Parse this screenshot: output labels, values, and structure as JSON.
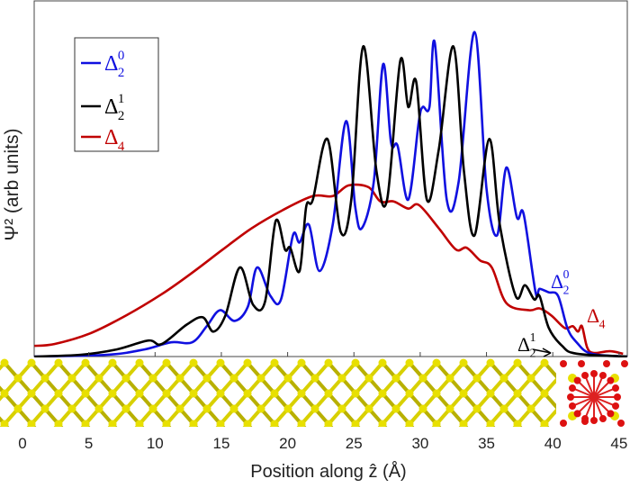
{
  "chart_data": {
    "type": "line",
    "title": "",
    "xlabel": "Position along ẑ (Å)",
    "ylabel": "Ψ² (arb units)",
    "xlim": [
      0,
      45
    ],
    "ylim": [
      0,
      1
    ],
    "xticks": [
      "0",
      "5",
      "10",
      "15",
      "20",
      "25",
      "30",
      "35",
      "40",
      "45"
    ],
    "grid": false,
    "legend_position": "top-left",
    "series": [
      {
        "name": "Δ2^0",
        "label_main": "Δ",
        "label_sub": "2",
        "label_sup": "0",
        "color": "#1010e0",
        "x": [
          0.9,
          6.4,
          9.2,
          11.2,
          12.8,
          13.9,
          14.9,
          16.0,
          17.0,
          17.7,
          18.7,
          19.5,
          20.4,
          20.9,
          21.6,
          22.4,
          23.4,
          24.4,
          25.1,
          25.6,
          26.5,
          27.2,
          27.8,
          28.3,
          29.1,
          29.9,
          30.2,
          30.7,
          31.1,
          32.0,
          32.9,
          34.1,
          35.0,
          35.8,
          36.5,
          37.3,
          37.8,
          38.7,
          39.0,
          39.7,
          40.4,
          41.1,
          41.8,
          42.9,
          45.6
        ],
        "y": [
          0,
          0.005,
          0.02,
          0.04,
          0.04,
          0.085,
          0.13,
          0.1,
          0.14,
          0.25,
          0.17,
          0.16,
          0.34,
          0.32,
          0.37,
          0.24,
          0.37,
          0.66,
          0.42,
          0.36,
          0.49,
          0.82,
          0.6,
          0.59,
          0.44,
          0.66,
          0.7,
          0.7,
          0.88,
          0.44,
          0.49,
          0.91,
          0.47,
          0.34,
          0.53,
          0.39,
          0.4,
          0.18,
          0.19,
          0.18,
          0.17,
          0.08,
          0.04,
          0.008,
          0
        ]
      },
      {
        "name": "Δ2^1",
        "label_main": "Δ",
        "label_sub": "2",
        "label_sup": "1",
        "color": "#000000",
        "x": [
          0.9,
          4.4,
          7.1,
          9.5,
          10.5,
          12.4,
          13.6,
          14.4,
          15.3,
          16.4,
          17.4,
          18.3,
          19.1,
          19.8,
          20.2,
          20.9,
          21.4,
          21.9,
          23.0,
          24.0,
          24.8,
          25.7,
          26.7,
          27.5,
          28.5,
          29.1,
          29.7,
          30.5,
          31.4,
          32.5,
          33.3,
          34.1,
          35.2,
          36.0,
          37.2,
          37.9,
          38.6,
          39.0,
          39.7,
          40.7,
          41.8,
          45.6
        ],
        "y": [
          0,
          0.005,
          0.02,
          0.045,
          0.035,
          0.09,
          0.11,
          0.07,
          0.115,
          0.25,
          0.145,
          0.155,
          0.38,
          0.3,
          0.305,
          0.24,
          0.42,
          0.44,
          0.61,
          0.35,
          0.44,
          0.87,
          0.52,
          0.44,
          0.83,
          0.7,
          0.77,
          0.44,
          0.58,
          0.87,
          0.52,
          0.34,
          0.61,
          0.37,
          0.17,
          0.2,
          0.16,
          0.17,
          0.08,
          0.03,
          0.008,
          0
        ]
      },
      {
        "name": "Δ4",
        "label_main": "Δ",
        "label_sub": "4",
        "label_sup": "",
        "color": "#c00000",
        "x": [
          0.9,
          2.4,
          5.1,
          7.8,
          10.5,
          12.8,
          15.1,
          17.3,
          19.6,
          21.9,
          23.4,
          24.6,
          26.1,
          27.0,
          28.0,
          29.1,
          29.9,
          31.4,
          32.7,
          33.5,
          34.5,
          35.4,
          36.5,
          38.2,
          39.0,
          39.9,
          40.9,
          41.5,
          41.9,
          42.2,
          42.6,
          43.1,
          44.3,
          45.3
        ],
        "y": [
          0.03,
          0.035,
          0.065,
          0.115,
          0.175,
          0.235,
          0.3,
          0.36,
          0.41,
          0.45,
          0.45,
          0.48,
          0.475,
          0.435,
          0.435,
          0.415,
          0.425,
          0.36,
          0.3,
          0.305,
          0.27,
          0.25,
          0.15,
          0.13,
          0.135,
          0.115,
          0.08,
          0.085,
          0.07,
          0.085,
          0.025,
          0.01,
          0.015,
          0.008
        ]
      }
    ],
    "annotations": [
      {
        "main": "Δ",
        "sub": "2",
        "sup": "0",
        "color": "#1010e0"
      },
      {
        "main": "Δ",
        "sub": "4",
        "sup": "",
        "color": "#c00000"
      },
      {
        "main": "Δ",
        "sub": "2",
        "sup": "1",
        "color": "#000000",
        "arrow": true
      }
    ],
    "inset_image": "silicon-lattice-with-oxide-interface",
    "lattice_color": "#e8e000",
    "oxygen_color": "#dd1111"
  }
}
